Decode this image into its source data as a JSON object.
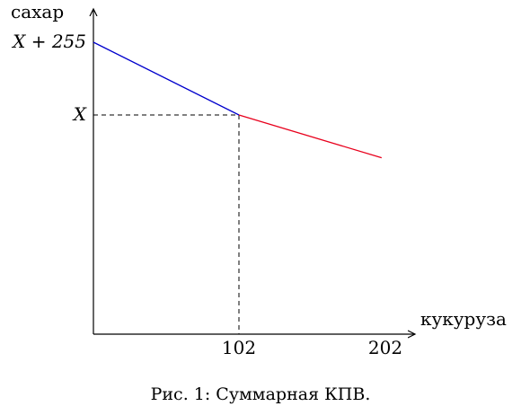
{
  "chart_data": {
    "type": "line",
    "xlabel": "кукуруза",
    "ylabel": "сахар",
    "x_ticks": [
      "102",
      "202"
    ],
    "y_ticks": [
      "X + 255",
      "X"
    ],
    "caption": "Рис. 1: Суммарная КПВ.",
    "series": [
      {
        "color": "#0000cc",
        "points": [
          [
            0,
            255
          ],
          [
            102,
            0
          ]
        ]
      },
      {
        "color": "#e8001c",
        "points": [
          [
            102,
            0
          ],
          [
            202,
            -150
          ]
        ]
      }
    ],
    "guide": {
      "x": 102,
      "y": 0,
      "style": "dashed"
    },
    "xlim": [
      0,
      222
    ],
    "ylim": [
      -150,
      255
    ]
  }
}
